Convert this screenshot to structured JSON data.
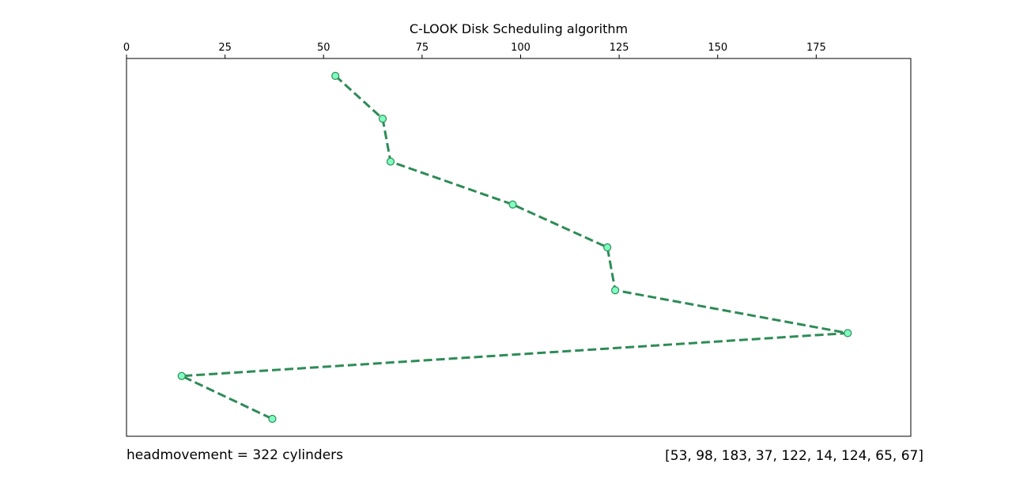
{
  "chart_data": {
    "type": "line",
    "title": "C-LOOK Disk Scheduling algorithm",
    "xlabel": "",
    "ylabel": "",
    "xlim": [
      0,
      199
    ],
    "xticks": [
      0,
      25,
      50,
      75,
      100,
      125,
      150,
      175
    ],
    "x_axis_position": "top",
    "y_axis_visible": false,
    "grid": false,
    "legend": false,
    "series": [
      {
        "values": [
          53,
          65,
          67,
          98,
          122,
          124,
          183,
          14,
          37
        ],
        "style": "dashed",
        "line_color": "#2e8b57",
        "marker_face_color": "#7fffc0",
        "marker_edge_color": "#2e8b57"
      }
    ]
  },
  "footer": {
    "head_movement": "headmovement = 322 cylinders",
    "request_queue": "[53, 98, 183, 37, 122, 14, 124, 65, 67]"
  }
}
